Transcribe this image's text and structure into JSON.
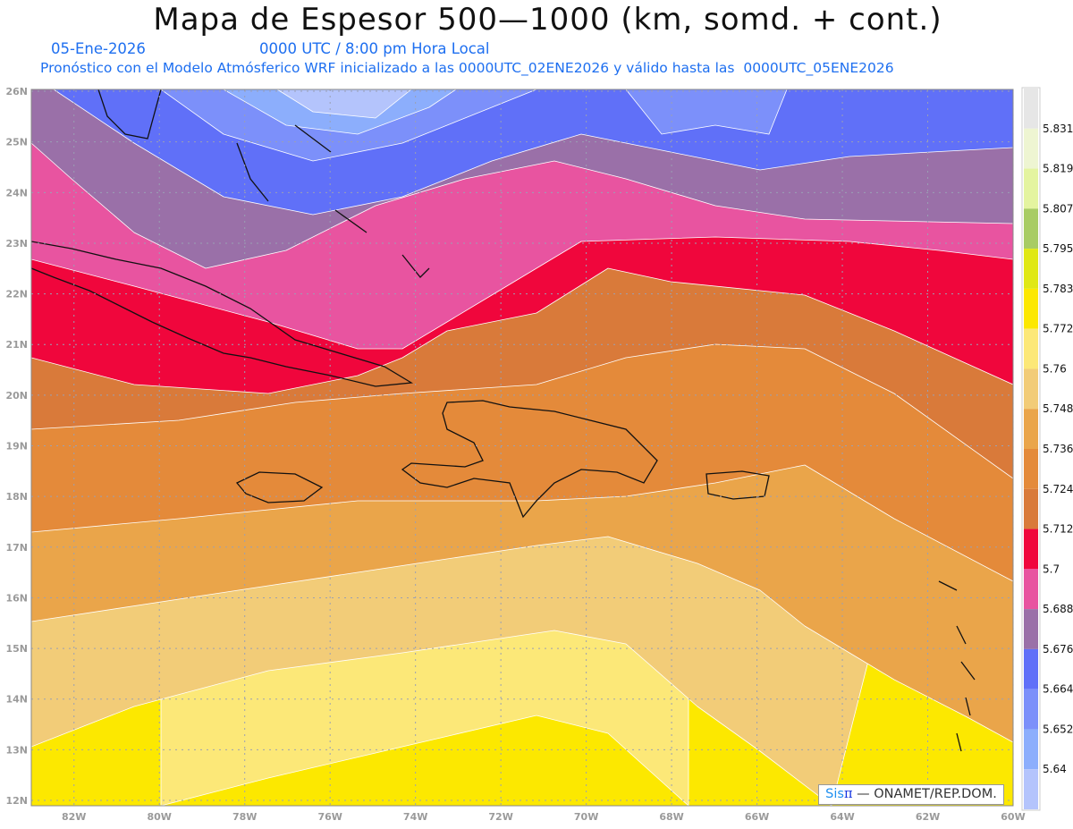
{
  "header": {
    "title": "Mapa de Espesor 500—1000 (km, somd. + cont.)",
    "date": "05-Ene-2026",
    "time": "0000 UTC / 8:00 pm Hora Local",
    "description": "Pronóstico con el Modelo Atmósferico WRF inicializado a las 0000UTC_02ENE2026 y válido hasta las  0000UTC_05ENE2026"
  },
  "axes": {
    "lon_labels": [
      "82W",
      "80W",
      "78W",
      "76W",
      "74W",
      "72W",
      "70W",
      "68W",
      "66W",
      "64W",
      "62W",
      "60W"
    ],
    "lon_values": [
      82,
      80,
      78,
      76,
      74,
      72,
      70,
      68,
      66,
      64,
      62,
      60
    ],
    "lat_labels": [
      "12N",
      "13N",
      "14N",
      "15N",
      "16N",
      "17N",
      "18N",
      "19N",
      "20N",
      "21N",
      "22N",
      "23N",
      "24N",
      "25N",
      "26N"
    ],
    "lat_values": [
      12,
      13,
      14,
      15,
      16,
      17,
      18,
      19,
      20,
      21,
      22,
      23,
      24,
      25,
      26
    ]
  },
  "colorbar": {
    "labels": [
      "5.831",
      "5.819",
      "5.807",
      "5.795",
      "5.783",
      "5.772",
      "5.76",
      "5.748",
      "5.736",
      "5.724",
      "5.712",
      "5.7",
      "5.688",
      "5.676",
      "5.664",
      "5.652",
      "5.64"
    ],
    "colors": [
      "#e6e6e6",
      "#eef5d2",
      "#e4f4a0",
      "#a8cc64",
      "#e0e814",
      "#fce800",
      "#fce878",
      "#f2cc78",
      "#eaa54a",
      "#e48a3a",
      "#d97a3a",
      "#f0063c",
      "#e854a0",
      "#9a70a8",
      "#6070f8",
      "#7c90fa",
      "#8caefc",
      "#b4c4fc"
    ]
  },
  "logo": {
    "sis": "Sis",
    "pi": "π",
    "rest": "—  ONAMET/REP.DOM."
  }
}
